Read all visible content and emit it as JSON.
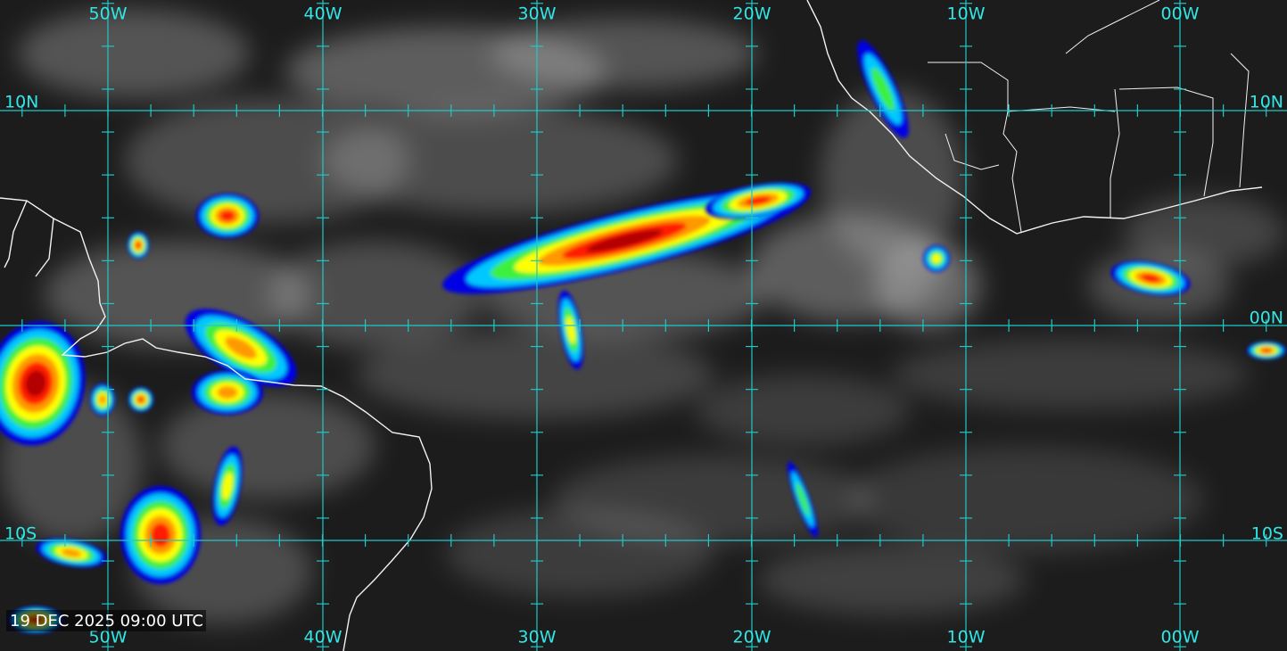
{
  "map": {
    "top_labels": [
      "50W",
      "40W",
      "30W",
      "20W",
      "10W",
      "00W"
    ],
    "bottom_labels": [
      "50W",
      "40W",
      "30W",
      "20W",
      "10W",
      "00W"
    ],
    "left_labels": [
      "10N",
      "10S"
    ],
    "right_labels": [
      "10N",
      "00N",
      "10S"
    ],
    "timestamp": "19 DEC 2025 09:00 UTC"
  }
}
